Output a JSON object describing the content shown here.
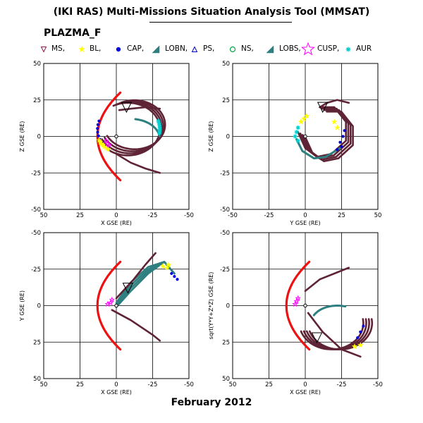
{
  "header": {
    "title": "(IKI RAS) Multi-Missions Situation Analysis Tool (MMSAT)",
    "mission": "PLAZMA_F",
    "date": "February 2012"
  },
  "legend": [
    {
      "label": "MS,",
      "marker": "triangle-down",
      "color": "#8b1a4a"
    },
    {
      "label": "BL,",
      "marker": "star-small",
      "color": "#ffff00"
    },
    {
      "label": "CAP,",
      "marker": "dot",
      "color": "#0000dd"
    },
    {
      "label": "LOBN,",
      "marker": "triangle-fill",
      "color": "#2e7f80"
    },
    {
      "label": "PS,",
      "marker": "triangle-open",
      "color": "#0000cc"
    },
    {
      "label": "NS,",
      "marker": "circle",
      "color": "#00aa44"
    },
    {
      "label": "LOBS,",
      "marker": "triangle-fill",
      "color": "#2e7f80"
    },
    {
      "label": "CUSP,",
      "marker": "star-big",
      "color": "#ff00ff"
    },
    {
      "label": "AUR",
      "marker": "asterisk",
      "color": "#00c8c8"
    }
  ],
  "colors": {
    "magnetopause": "#ee1111",
    "orbit": "#5e2436",
    "lobes": "#2e7f80",
    "cap": "#0000dd",
    "boundary_layer": "#ffff00",
    "aurora": "#00d0d0",
    "cusp": "#ff00ff"
  },
  "chart_data": [
    {
      "type": "scatter",
      "panel": "top-left",
      "xlabel": "X GSE (RE)",
      "ylabel": "Z GSE (RE)",
      "xlim": [
        50,
        -50
      ],
      "ylim": [
        -50,
        50
      ],
      "xticks": [
        "50",
        "25",
        "0",
        "-25",
        "-50"
      ],
      "yticks": [
        "50",
        "25",
        "0",
        "-25",
        "-50"
      ],
      "grid": true,
      "markers": [
        {
          "type": "MS",
          "x": -7,
          "y": 20
        }
      ],
      "earth": [
        0,
        0
      ]
    },
    {
      "type": "scatter",
      "panel": "top-right",
      "xlabel": "Y GSE (RE)",
      "ylabel": "Z GSE (RE)",
      "xlim": [
        -50,
        50
      ],
      "ylim": [
        -50,
        50
      ],
      "xticks": [
        "-50",
        "-25",
        "0",
        "25",
        "50"
      ],
      "yticks": [
        "50",
        "25",
        "0",
        "-25",
        "-50"
      ],
      "grid": true,
      "markers": [
        {
          "type": "MS",
          "x": 12,
          "y": 20
        }
      ],
      "earth": [
        0,
        0
      ]
    },
    {
      "type": "scatter",
      "panel": "bottom-left",
      "xlabel": "X GSE (RE)",
      "ylabel": "Y GSE (RE)",
      "xlim": [
        50,
        -50
      ],
      "ylim": [
        -50,
        50
      ],
      "xticks": [
        "50",
        "25",
        "0",
        "-25",
        "-50"
      ],
      "yticks": [
        "-50",
        "-25",
        "0",
        "25",
        "50"
      ],
      "grid": true,
      "markers": [
        {
          "type": "MS",
          "x": -8,
          "y": 12
        }
      ],
      "earth": [
        0,
        0
      ]
    },
    {
      "type": "scatter",
      "panel": "bottom-right",
      "xlabel": "X GSE (RE)",
      "ylabel": "sqrt(Y*Y+Z*Z) GSE (RE)",
      "xlim": [
        50,
        -50
      ],
      "ylim": [
        -50,
        50
      ],
      "xticks": [
        "50",
        "25",
        "0",
        "-25",
        "-50"
      ],
      "yticks": [
        "-50",
        "-25",
        "0",
        "25",
        "50"
      ],
      "grid": true,
      "markers": [
        {
          "type": "MS",
          "x": -8,
          "y": -22
        }
      ],
      "earth": [
        0,
        0
      ]
    }
  ]
}
